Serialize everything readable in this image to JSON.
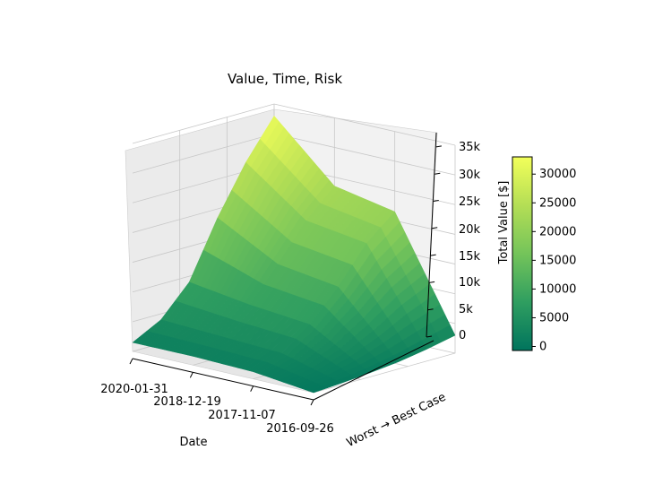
{
  "chart_data": {
    "type": "surface3d",
    "title": "Value, Time, Risk",
    "xlabel": "Date",
    "ylabel": "Worst → Best Case",
    "zlabel": "",
    "x_ticks": [
      "2020-01-31",
      "2018-12-19",
      "2017-11-07",
      "2016-09-26"
    ],
    "z_ticks": [
      "0",
      "5k",
      "10k",
      "15k",
      "20k",
      "25k",
      "30k",
      "35k"
    ],
    "zlim": [
      0,
      35000
    ],
    "colorbar": {
      "label": "Total Value [$]",
      "ticks": [
        "0",
        "5000",
        "10000",
        "15000",
        "20000",
        "25000",
        "30000"
      ],
      "range": [
        -700,
        33000
      ],
      "colors": [
        "#00745d",
        "#2f9e60",
        "#74c45a",
        "#b4de55",
        "#f2ff5a"
      ]
    },
    "grid": true,
    "cross_sections_by_date": [
      {
        "date": "2020-01-31",
        "scenario_values": [
          1500,
          4000,
          9000,
          18500,
          26500,
          33000
        ]
      },
      {
        "date": "2018-12-19",
        "scenario_values": [
          1500,
          3500,
          7500,
          13000,
          19000,
          23500
        ]
      },
      {
        "date": "2017-11-07",
        "scenario_values": [
          1200,
          3000,
          6500,
          11500,
          17500,
          21500
        ]
      },
      {
        "date": "2016-09-26",
        "scenario_values": [
          0,
          300,
          700,
          1200,
          2000,
          3000
        ]
      }
    ]
  }
}
